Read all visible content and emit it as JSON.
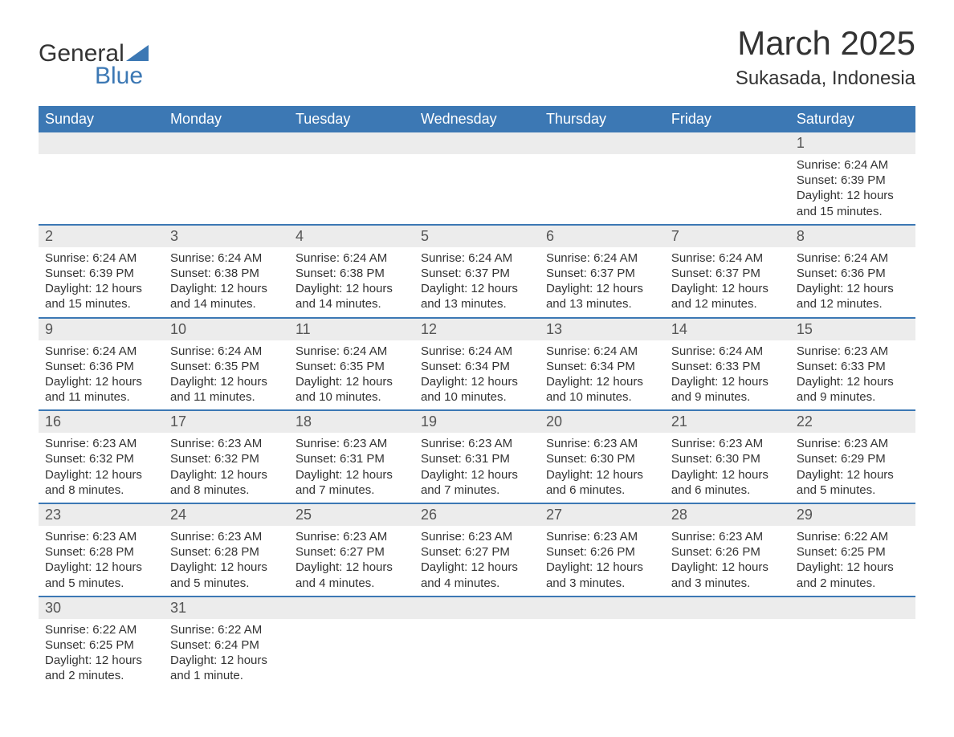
{
  "logo": {
    "text1": "General",
    "text2": "Blue"
  },
  "colors": {
    "header_bg": "#3c78b4",
    "header_text": "#ffffff",
    "daynum_bg": "#ececec",
    "border": "#3c78b4",
    "body_text": "#333333"
  },
  "title": "March 2025",
  "location": "Sukasada, Indonesia",
  "weekdays": [
    "Sunday",
    "Monday",
    "Tuesday",
    "Wednesday",
    "Thursday",
    "Friday",
    "Saturday"
  ],
  "weeks": [
    [
      null,
      null,
      null,
      null,
      null,
      null,
      {
        "n": "1",
        "sr": "Sunrise: 6:24 AM",
        "ss": "Sunset: 6:39 PM",
        "dl": "Daylight: 12 hours and 15 minutes."
      }
    ],
    [
      {
        "n": "2",
        "sr": "Sunrise: 6:24 AM",
        "ss": "Sunset: 6:39 PM",
        "dl": "Daylight: 12 hours and 15 minutes."
      },
      {
        "n": "3",
        "sr": "Sunrise: 6:24 AM",
        "ss": "Sunset: 6:38 PM",
        "dl": "Daylight: 12 hours and 14 minutes."
      },
      {
        "n": "4",
        "sr": "Sunrise: 6:24 AM",
        "ss": "Sunset: 6:38 PM",
        "dl": "Daylight: 12 hours and 14 minutes."
      },
      {
        "n": "5",
        "sr": "Sunrise: 6:24 AM",
        "ss": "Sunset: 6:37 PM",
        "dl": "Daylight: 12 hours and 13 minutes."
      },
      {
        "n": "6",
        "sr": "Sunrise: 6:24 AM",
        "ss": "Sunset: 6:37 PM",
        "dl": "Daylight: 12 hours and 13 minutes."
      },
      {
        "n": "7",
        "sr": "Sunrise: 6:24 AM",
        "ss": "Sunset: 6:37 PM",
        "dl": "Daylight: 12 hours and 12 minutes."
      },
      {
        "n": "8",
        "sr": "Sunrise: 6:24 AM",
        "ss": "Sunset: 6:36 PM",
        "dl": "Daylight: 12 hours and 12 minutes."
      }
    ],
    [
      {
        "n": "9",
        "sr": "Sunrise: 6:24 AM",
        "ss": "Sunset: 6:36 PM",
        "dl": "Daylight: 12 hours and 11 minutes."
      },
      {
        "n": "10",
        "sr": "Sunrise: 6:24 AM",
        "ss": "Sunset: 6:35 PM",
        "dl": "Daylight: 12 hours and 11 minutes."
      },
      {
        "n": "11",
        "sr": "Sunrise: 6:24 AM",
        "ss": "Sunset: 6:35 PM",
        "dl": "Daylight: 12 hours and 10 minutes."
      },
      {
        "n": "12",
        "sr": "Sunrise: 6:24 AM",
        "ss": "Sunset: 6:34 PM",
        "dl": "Daylight: 12 hours and 10 minutes."
      },
      {
        "n": "13",
        "sr": "Sunrise: 6:24 AM",
        "ss": "Sunset: 6:34 PM",
        "dl": "Daylight: 12 hours and 10 minutes."
      },
      {
        "n": "14",
        "sr": "Sunrise: 6:24 AM",
        "ss": "Sunset: 6:33 PM",
        "dl": "Daylight: 12 hours and 9 minutes."
      },
      {
        "n": "15",
        "sr": "Sunrise: 6:23 AM",
        "ss": "Sunset: 6:33 PM",
        "dl": "Daylight: 12 hours and 9 minutes."
      }
    ],
    [
      {
        "n": "16",
        "sr": "Sunrise: 6:23 AM",
        "ss": "Sunset: 6:32 PM",
        "dl": "Daylight: 12 hours and 8 minutes."
      },
      {
        "n": "17",
        "sr": "Sunrise: 6:23 AM",
        "ss": "Sunset: 6:32 PM",
        "dl": "Daylight: 12 hours and 8 minutes."
      },
      {
        "n": "18",
        "sr": "Sunrise: 6:23 AM",
        "ss": "Sunset: 6:31 PM",
        "dl": "Daylight: 12 hours and 7 minutes."
      },
      {
        "n": "19",
        "sr": "Sunrise: 6:23 AM",
        "ss": "Sunset: 6:31 PM",
        "dl": "Daylight: 12 hours and 7 minutes."
      },
      {
        "n": "20",
        "sr": "Sunrise: 6:23 AM",
        "ss": "Sunset: 6:30 PM",
        "dl": "Daylight: 12 hours and 6 minutes."
      },
      {
        "n": "21",
        "sr": "Sunrise: 6:23 AM",
        "ss": "Sunset: 6:30 PM",
        "dl": "Daylight: 12 hours and 6 minutes."
      },
      {
        "n": "22",
        "sr": "Sunrise: 6:23 AM",
        "ss": "Sunset: 6:29 PM",
        "dl": "Daylight: 12 hours and 5 minutes."
      }
    ],
    [
      {
        "n": "23",
        "sr": "Sunrise: 6:23 AM",
        "ss": "Sunset: 6:28 PM",
        "dl": "Daylight: 12 hours and 5 minutes."
      },
      {
        "n": "24",
        "sr": "Sunrise: 6:23 AM",
        "ss": "Sunset: 6:28 PM",
        "dl": "Daylight: 12 hours and 5 minutes."
      },
      {
        "n": "25",
        "sr": "Sunrise: 6:23 AM",
        "ss": "Sunset: 6:27 PM",
        "dl": "Daylight: 12 hours and 4 minutes."
      },
      {
        "n": "26",
        "sr": "Sunrise: 6:23 AM",
        "ss": "Sunset: 6:27 PM",
        "dl": "Daylight: 12 hours and 4 minutes."
      },
      {
        "n": "27",
        "sr": "Sunrise: 6:23 AM",
        "ss": "Sunset: 6:26 PM",
        "dl": "Daylight: 12 hours and 3 minutes."
      },
      {
        "n": "28",
        "sr": "Sunrise: 6:23 AM",
        "ss": "Sunset: 6:26 PM",
        "dl": "Daylight: 12 hours and 3 minutes."
      },
      {
        "n": "29",
        "sr": "Sunrise: 6:22 AM",
        "ss": "Sunset: 6:25 PM",
        "dl": "Daylight: 12 hours and 2 minutes."
      }
    ],
    [
      {
        "n": "30",
        "sr": "Sunrise: 6:22 AM",
        "ss": "Sunset: 6:25 PM",
        "dl": "Daylight: 12 hours and 2 minutes."
      },
      {
        "n": "31",
        "sr": "Sunrise: 6:22 AM",
        "ss": "Sunset: 6:24 PM",
        "dl": "Daylight: 12 hours and 1 minute."
      },
      null,
      null,
      null,
      null,
      null
    ]
  ]
}
